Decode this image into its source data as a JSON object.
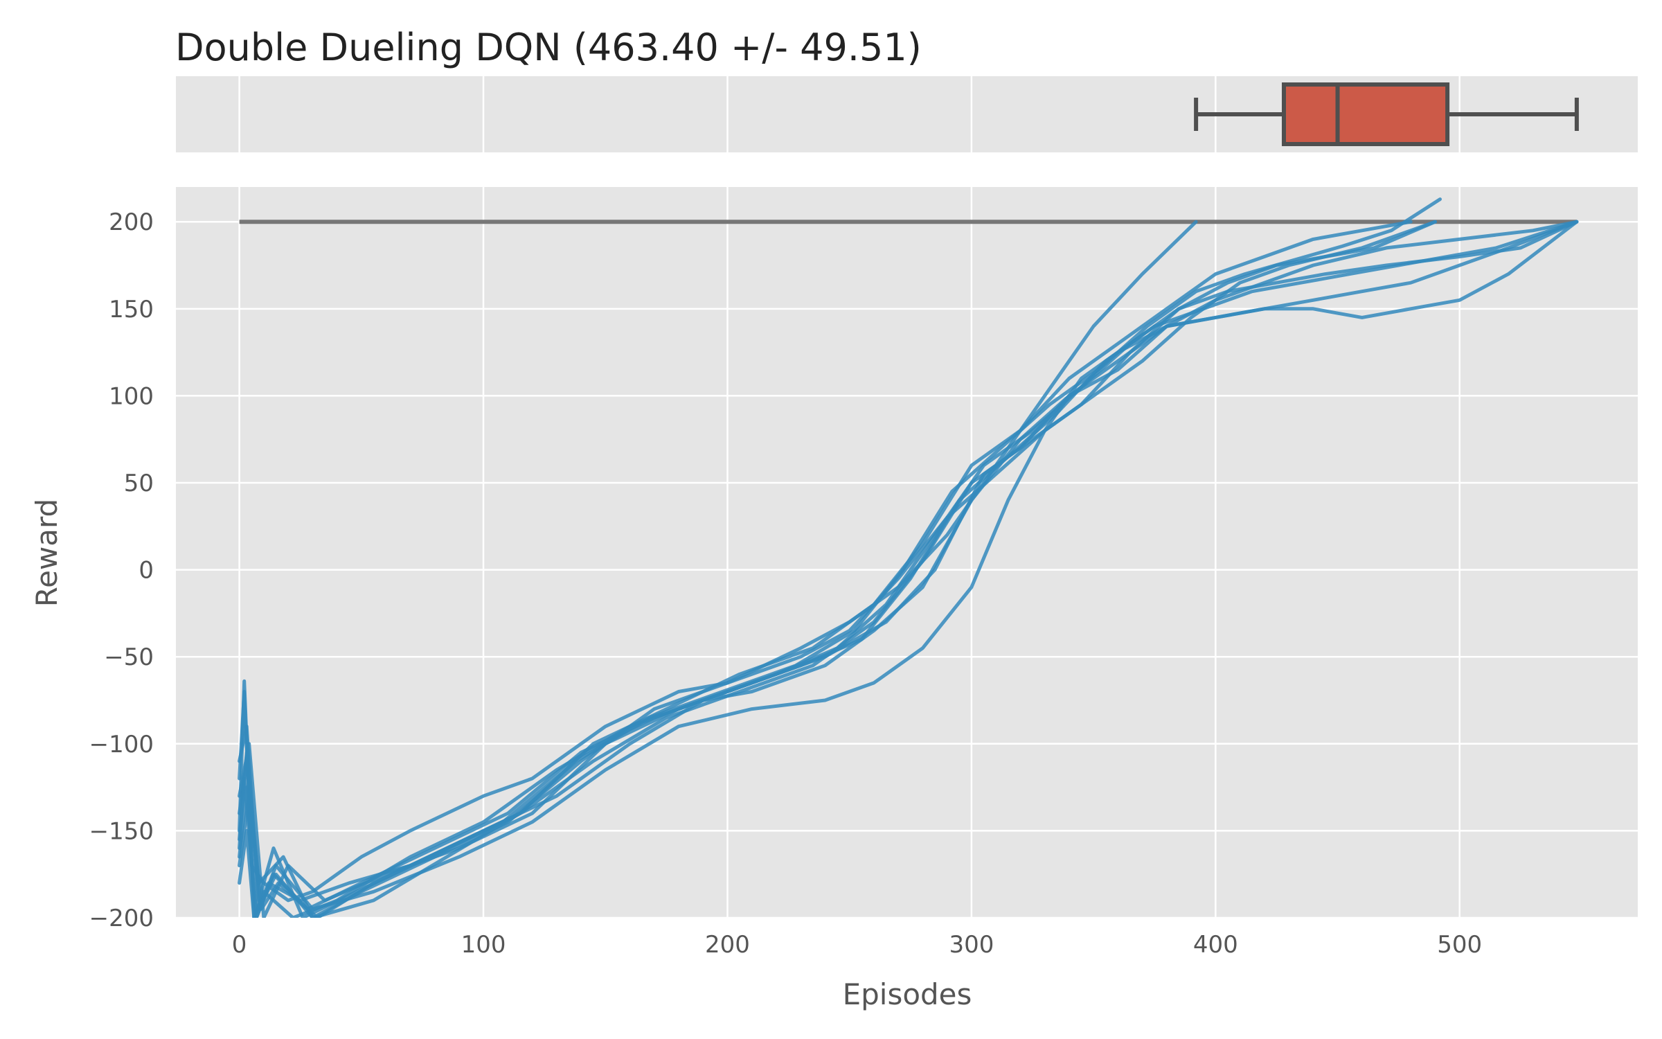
{
  "chart_data": [
    {
      "type": "box",
      "panel": "top",
      "title": "Double Dueling DQN (463.40 +/- 49.51)",
      "orientation": "horizontal",
      "stats": {
        "whisker_low": 392,
        "q1": 428,
        "median": 450,
        "q3": 495,
        "whisker_high": 548
      },
      "box_color": "#cc5a48",
      "grid": true
    },
    {
      "type": "line",
      "panel": "bottom",
      "xlabel": "Episodes",
      "ylabel": "Reward",
      "xlim": [
        -26,
        573
      ],
      "ylim": [
        -200,
        220
      ],
      "xticks": [
        0,
        100,
        200,
        300,
        400,
        500
      ],
      "xtick_labels": [
        "0",
        "100",
        "200",
        "300",
        "400",
        "500"
      ],
      "yticks": [
        -200,
        -150,
        -100,
        -50,
        0,
        50,
        100,
        150,
        200
      ],
      "ytick_labels": [
        "−200",
        "−150",
        "−100",
        "−50",
        "0",
        "50",
        "100",
        "150",
        "200"
      ],
      "grid": true,
      "line_color": "#348abd",
      "reference_line": {
        "y": 200,
        "x": [
          0,
          548
        ],
        "color": "#777777"
      },
      "series": [
        {
          "x": [
            0,
            2,
            5,
            10,
            20,
            30,
            50,
            70,
            100,
            120,
            150,
            180,
            200,
            230,
            250,
            270,
            290,
            310,
            330,
            350,
            370,
            392
          ],
          "y": [
            -120,
            -70,
            -170,
            -180,
            -190,
            -185,
            -165,
            -150,
            -130,
            -120,
            -90,
            -70,
            -65,
            -45,
            -30,
            -10,
            20,
            60,
            100,
            140,
            170,
            200
          ]
        },
        {
          "x": [
            0,
            3,
            8,
            15,
            30,
            50,
            80,
            110,
            140,
            170,
            200,
            230,
            250,
            270,
            290,
            310,
            330,
            350,
            370,
            390,
            410,
            430,
            460,
            490
          ],
          "y": [
            -110,
            -90,
            -195,
            -175,
            -200,
            -185,
            -165,
            -145,
            -110,
            -80,
            -65,
            -50,
            -35,
            -5,
            30,
            55,
            80,
            100,
            120,
            145,
            165,
            175,
            185,
            200
          ]
        },
        {
          "x": [
            0,
            2,
            6,
            12,
            25,
            45,
            70,
            100,
            130,
            160,
            190,
            210,
            240,
            260,
            280,
            300,
            320,
            340,
            360,
            380,
            400,
            420,
            440,
            470,
            500,
            530,
            548
          ],
          "y": [
            -150,
            -64,
            -200,
            -180,
            -190,
            -180,
            -170,
            -150,
            -130,
            -100,
            -75,
            -70,
            -55,
            -35,
            -10,
            40,
            75,
            100,
            115,
            140,
            155,
            165,
            175,
            185,
            190,
            195,
            200
          ]
        },
        {
          "x": [
            0,
            4,
            10,
            20,
            35,
            60,
            90,
            120,
            150,
            180,
            210,
            240,
            265,
            285,
            305,
            325,
            345,
            365,
            385,
            405,
            425,
            445,
            470,
            500,
            525,
            548
          ],
          "y": [
            -130,
            -100,
            -200,
            -170,
            -190,
            -175,
            -160,
            -140,
            -100,
            -80,
            -65,
            -50,
            -30,
            0,
            55,
            75,
            95,
            125,
            150,
            160,
            165,
            170,
            175,
            180,
            185,
            200
          ]
        },
        {
          "x": [
            0,
            3,
            8,
            18,
            30,
            55,
            85,
            115,
            145,
            175,
            205,
            235,
            260,
            280,
            300,
            320,
            340,
            360,
            380,
            400,
            420,
            440,
            460,
            480
          ],
          "y": [
            -140,
            -110,
            -180,
            -165,
            -200,
            -190,
            -165,
            -140,
            -100,
            -80,
            -60,
            -45,
            -20,
            15,
            60,
            80,
            110,
            130,
            150,
            170,
            180,
            190,
            195,
            200
          ]
        },
        {
          "x": [
            0,
            2,
            7,
            14,
            28,
            50,
            80,
            110,
            140,
            170,
            200,
            230,
            255,
            275,
            295,
            315,
            335,
            355,
            375,
            395,
            415,
            435,
            455,
            475,
            495,
            515,
            548
          ],
          "y": [
            -160,
            -120,
            -200,
            -175,
            -195,
            -180,
            -160,
            -140,
            -105,
            -85,
            -70,
            -55,
            -40,
            -5,
            40,
            65,
            90,
            120,
            140,
            150,
            160,
            165,
            170,
            175,
            180,
            185,
            200
          ]
        },
        {
          "x": [
            0,
            3,
            6,
            10,
            22,
            40,
            70,
            100,
            130,
            160,
            190,
            220,
            245,
            265,
            285,
            305,
            325,
            345,
            365,
            385,
            405,
            425,
            445,
            465,
            490
          ],
          "y": [
            -180,
            -150,
            -200,
            -185,
            -200,
            -190,
            -165,
            -145,
            -115,
            -90,
            -75,
            -60,
            -45,
            -20,
            20,
            60,
            80,
            105,
            130,
            150,
            165,
            175,
            180,
            185,
            200
          ]
        },
        {
          "x": [
            0,
            4,
            9,
            16,
            32,
            55,
            85,
            115,
            145,
            175,
            205,
            235,
            260,
            280,
            300,
            320,
            340,
            360,
            380,
            400,
            420,
            440,
            460,
            480,
            500,
            520,
            548
          ],
          "y": [
            -170,
            -130,
            -195,
            -180,
            -200,
            -180,
            -160,
            -140,
            -110,
            -85,
            -70,
            -55,
            -30,
            5,
            50,
            70,
            100,
            120,
            140,
            145,
            150,
            150,
            145,
            150,
            155,
            170,
            200
          ]
        },
        {
          "x": [
            0,
            3,
            8,
            14,
            26,
            48,
            78,
            108,
            138,
            168,
            198,
            228,
            252,
            272,
            292,
            312,
            332,
            352,
            372,
            392,
            412,
            432,
            452,
            472,
            492
          ],
          "y": [
            -155,
            -105,
            -190,
            -160,
            -200,
            -185,
            -165,
            -145,
            -110,
            -85,
            -70,
            -55,
            -35,
            0,
            45,
            70,
            95,
            115,
            140,
            160,
            170,
            178,
            186,
            195,
            213
          ]
        },
        {
          "x": [
            0,
            3,
            7,
            15,
            30,
            55,
            90,
            120,
            150,
            180,
            210,
            240,
            260,
            280,
            300,
            315,
            330,
            345,
            360,
            380,
            400,
            420,
            440,
            460,
            480,
            500,
            520,
            548
          ],
          "y": [
            -165,
            -125,
            -200,
            -170,
            -195,
            -185,
            -165,
            -145,
            -115,
            -90,
            -80,
            -75,
            -65,
            -45,
            -10,
            40,
            80,
            110,
            125,
            140,
            145,
            150,
            155,
            160,
            165,
            175,
            185,
            200
          ]
        }
      ]
    }
  ]
}
